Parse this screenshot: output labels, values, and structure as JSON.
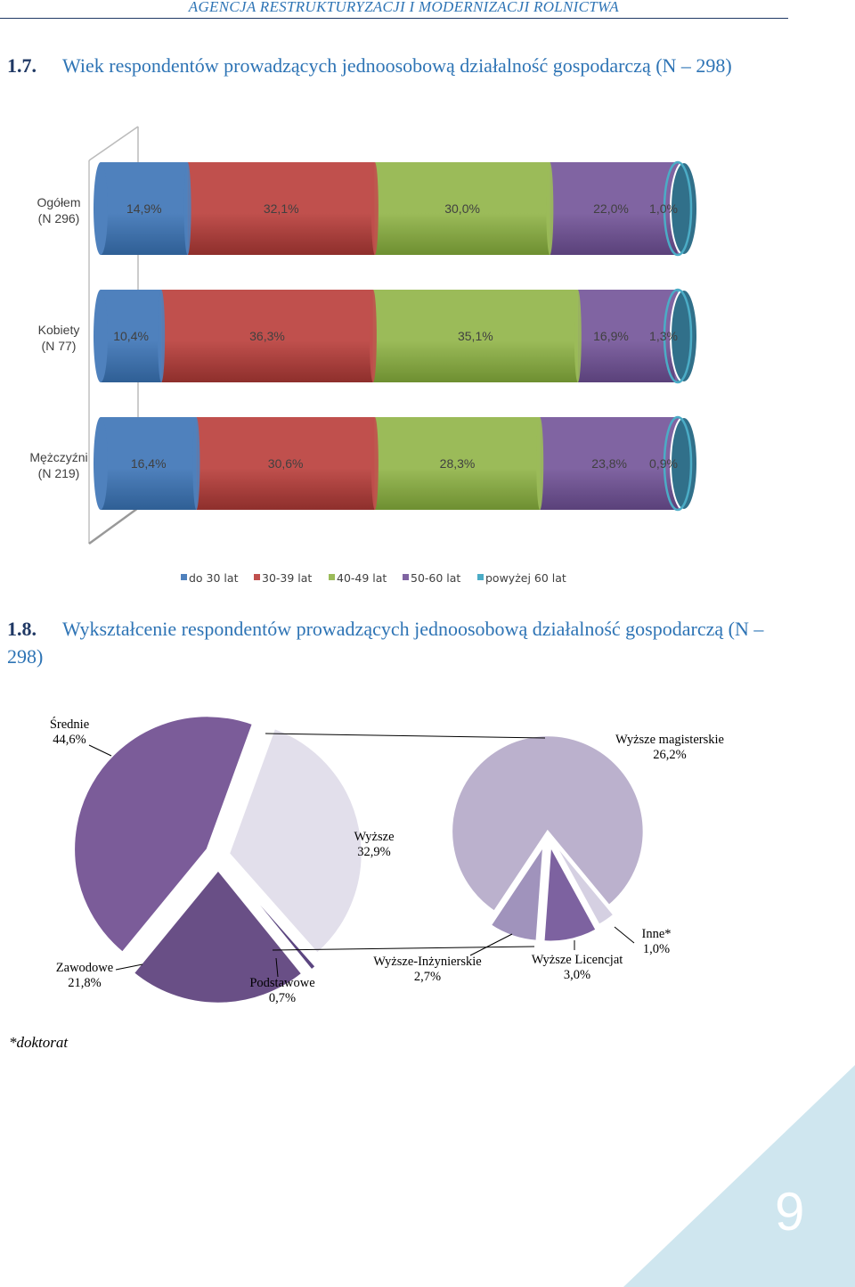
{
  "header": {
    "text": "AGENCJA RESTRUKTURYZACJI I MODERNIZACJI ROLNICTWA"
  },
  "section1": {
    "number": "1.7.",
    "title": "Wiek respondentów prowadzących jednoosobową działalność gospodarczą (N – 298)"
  },
  "section2": {
    "number": "1.8.",
    "title": "Wykształcenie respondentów prowadzących jednoosobową działalność gospodarczą  (N – 298)"
  },
  "chart_data": [
    {
      "type": "bar",
      "orientation": "horizontal-stacked-percent",
      "categories": [
        {
          "line1": "Ogółem",
          "line2": "(N 296)"
        },
        {
          "line1": "Kobiety",
          "line2": "(N 77)"
        },
        {
          "line1": "Mężczyźni",
          "line2": "(N 219)"
        }
      ],
      "series": [
        {
          "name": "do 30 lat",
          "color": "#4f81bd",
          "dark": "#2f5f95",
          "values": [
            14.9,
            10.4,
            16.4
          ],
          "labels": [
            "14,9%",
            "10,4%",
            "16,4%"
          ]
        },
        {
          "name": "30-39 lat",
          "color": "#c0504d",
          "dark": "#8e2f2c",
          "values": [
            32.1,
            36.3,
            30.6
          ],
          "labels": [
            "32,1%",
            "36,3%",
            "30,6%"
          ]
        },
        {
          "name": "40-49 lat",
          "color": "#9bbb59",
          "dark": "#6e8f31",
          "values": [
            30.0,
            35.1,
            28.3
          ],
          "labels": [
            "30,0%",
            "35,1%",
            "28,3%"
          ]
        },
        {
          "name": "50-60 lat",
          "color": "#8064a2",
          "dark": "#5a417a",
          "values": [
            22.0,
            16.9,
            23.8
          ],
          "labels": [
            "22,0%",
            "16,9%",
            "23,8%"
          ]
        },
        {
          "name": "powyżej 60 lat",
          "color": "#4bacc6",
          "dark": "#2a7f97",
          "values": [
            1.0,
            1.3,
            0.9
          ],
          "labels": [
            "1,0%",
            "1,3%",
            "0,9%"
          ]
        }
      ],
      "end_cap_color": "#31708a",
      "legend_position": "bottom"
    },
    {
      "type": "pie",
      "variant": "pie-of-pie",
      "main_slices": [
        {
          "name": "Średnie",
          "value": 44.6,
          "label": "44,6%",
          "color": "#7b5c99"
        },
        {
          "name": "Wyższe",
          "value": 32.9,
          "label": "32,9%",
          "color": "#e2dfeb"
        },
        {
          "name": "Podstawowe",
          "value": 0.7,
          "label": "0,7%",
          "color": "#5b4580"
        },
        {
          "name": "Zawodowe",
          "value": 21.8,
          "label": "21,8%",
          "color": "#694f86"
        }
      ],
      "secondary_slices": [
        {
          "name": "Wyższe magisterskie",
          "value": 26.2,
          "label": "26,2%",
          "color": "#bbb1cd"
        },
        {
          "name": "Wyższe-Inżynierskie",
          "value": 2.7,
          "label": "2,7%",
          "color": "#a093bc"
        },
        {
          "name": "Wyższe Licencjat",
          "value": 3.0,
          "label": "3,0%",
          "color": "#7d62a0"
        },
        {
          "name": "Inne*",
          "value": 1.0,
          "label": "1,0%",
          "color": "#d5d0e2"
        }
      ]
    }
  ],
  "footnote": "*doktorat",
  "page_number": "9",
  "corner_color": "#cfe6ef"
}
